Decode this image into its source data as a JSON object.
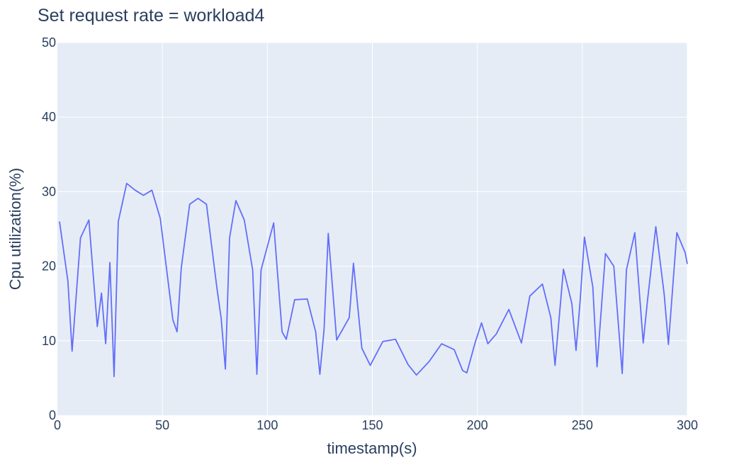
{
  "chart_data": {
    "type": "line",
    "title": "Set request rate = workload4",
    "xlabel": "timestamp(s)",
    "ylabel": "Cpu utilization(%)",
    "xlim": [
      0,
      300
    ],
    "ylim": [
      0,
      50
    ],
    "x_ticks": [
      0,
      50,
      100,
      150,
      200,
      250,
      300
    ],
    "y_ticks": [
      0,
      10,
      20,
      30,
      40,
      50
    ],
    "grid": true,
    "colors": {
      "line": "#636efa",
      "plot_bg": "#e5ecf6",
      "grid": "#ffffff",
      "text": "#2a3f5f"
    },
    "series": [
      {
        "x": [
          1,
          5,
          7,
          11,
          15,
          19,
          21,
          23,
          25,
          27,
          29,
          33,
          37,
          41,
          45,
          49,
          55,
          57,
          59,
          63,
          67,
          71,
          76,
          78,
          80,
          82,
          85,
          89,
          93,
          95,
          97,
          103,
          107,
          109,
          113,
          119,
          123,
          125,
          127,
          129,
          133,
          139,
          141,
          145,
          149,
          155,
          161,
          167,
          171,
          177,
          183,
          189,
          193,
          195,
          199,
          202,
          205,
          209,
          215,
          221,
          225,
          231,
          235,
          237,
          241,
          245,
          247,
          249,
          251,
          255,
          257,
          261,
          265,
          269,
          271,
          275,
          279,
          281,
          285,
          289,
          291,
          295,
          299,
          300
        ],
        "y": [
          26,
          18,
          8.6,
          23.8,
          26.2,
          11.9,
          16.4,
          9.6,
          20.5,
          5.2,
          26,
          31.1,
          30.2,
          29.5,
          30.2,
          26.4,
          12.8,
          11.2,
          19.8,
          28.3,
          29.1,
          28.3,
          17,
          13,
          6.2,
          23.8,
          28.8,
          26.2,
          19.5,
          5.5,
          19.5,
          25.8,
          11.2,
          10.2,
          15.5,
          15.6,
          11.2,
          5.5,
          11.5,
          24.4,
          10.1,
          13.1,
          20.4,
          9,
          6.7,
          9.9,
          10.2,
          6.8,
          5.4,
          7.2,
          9.6,
          8.8,
          6,
          5.7,
          9.8,
          12.4,
          9.6,
          10.9,
          14.2,
          9.7,
          16,
          17.6,
          13.1,
          6.7,
          19.6,
          15,
          8.7,
          15.5,
          23.9,
          17.2,
          6.5,
          21.7,
          20,
          5.6,
          19.5,
          24.5,
          9.7,
          15.3,
          25.3,
          16.2,
          9.5,
          24.5,
          21.8,
          20.3
        ]
      }
    ]
  }
}
